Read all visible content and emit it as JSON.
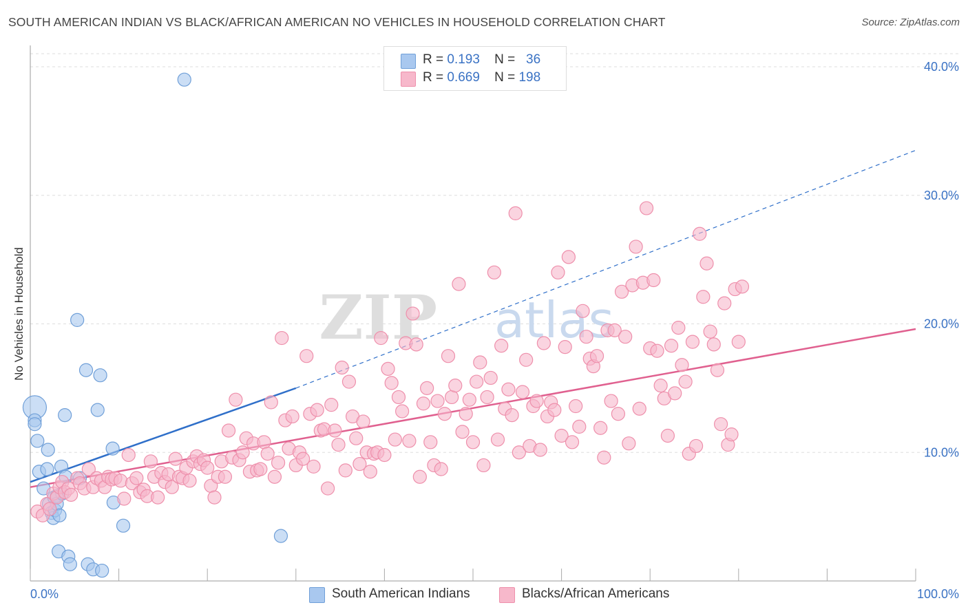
{
  "header": {
    "title": "SOUTH AMERICAN INDIAN VS BLACK/AFRICAN AMERICAN NO VEHICLES IN HOUSEHOLD CORRELATION CHART",
    "source": "Source: ZipAtlas.com"
  },
  "legend": {
    "rows": [
      {
        "r_label": "R =",
        "r_value": "0.193",
        "n_label": "N =",
        "n_value": "36"
      },
      {
        "r_label": "R =",
        "r_value": "0.669",
        "n_label": "N =",
        "n_value": "198"
      }
    ]
  },
  "watermark": {
    "zip": "ZIP",
    "atlas": "atlas"
  },
  "colors": {
    "blue_fill": "#a9c8ef",
    "blue_stroke": "#6f9fd8",
    "blue_line": "#2f6fc9",
    "pink_fill": "#f7b8cb",
    "pink_stroke": "#ee8fab",
    "pink_line": "#e0608f",
    "tick_label": "#3a72c4",
    "grid": "#dddddd"
  },
  "chart_data": {
    "type": "scatter",
    "title": "SOUTH AMERICAN INDIAN VS BLACK/AFRICAN AMERICAN NO VEHICLES IN HOUSEHOLD CORRELATION CHART",
    "xlabel": "",
    "ylabel": "No Vehicles in Household",
    "xlim": [
      0,
      100
    ],
    "ylim": [
      0,
      40
    ],
    "x_tick_labels": [
      "0.0%",
      "100.0%"
    ],
    "y_ticks": [
      10,
      20,
      30,
      40
    ],
    "y_tick_labels": [
      "10.0%",
      "20.0%",
      "30.0%",
      "40.0%"
    ],
    "grid": true,
    "legend_position": "top-center",
    "series": [
      {
        "name": "South American Indians",
        "color": "blue",
        "r": 0.193,
        "n": 36,
        "trend": {
          "x0": 0,
          "y0": 7.7,
          "x1": 30,
          "y1": 15.0,
          "dashed_to_x": 100,
          "dashed_to_y": 33.5
        },
        "points": [
          [
            0.5,
            13.5,
            "large"
          ],
          [
            0.5,
            12.5
          ],
          [
            0.5,
            12.2
          ],
          [
            0.8,
            10.9
          ],
          [
            1.0,
            8.5
          ],
          [
            1.5,
            7.2
          ],
          [
            1.9,
            8.7
          ],
          [
            2.0,
            10.2
          ],
          [
            2.1,
            6.0
          ],
          [
            2.4,
            5.3
          ],
          [
            2.6,
            4.9
          ],
          [
            2.7,
            6.5
          ],
          [
            2.8,
            5.5
          ],
          [
            3.0,
            6.6
          ],
          [
            3.0,
            6.0
          ],
          [
            3.2,
            2.3
          ],
          [
            3.3,
            5.1
          ],
          [
            3.5,
            8.9
          ],
          [
            3.6,
            6.8
          ],
          [
            3.9,
            12.9
          ],
          [
            4.0,
            8.1
          ],
          [
            4.3,
            1.9
          ],
          [
            4.5,
            1.3
          ],
          [
            5.3,
            20.3
          ],
          [
            5.6,
            8.0
          ],
          [
            6.5,
            1.3
          ],
          [
            7.1,
            0.9
          ],
          [
            7.6,
            13.3
          ],
          [
            7.9,
            16.0
          ],
          [
            8.1,
            0.8
          ],
          [
            6.3,
            16.4
          ],
          [
            9.4,
            6.1
          ],
          [
            10.5,
            4.3
          ],
          [
            9.3,
            10.3
          ],
          [
            17.4,
            39.0
          ],
          [
            28.3,
            3.5
          ]
        ]
      },
      {
        "name": "Blacks/African Americans",
        "color": "pink",
        "r": 0.669,
        "n": 198,
        "trend": {
          "x0": 0,
          "y0": 7.3,
          "x1": 100,
          "y1": 19.6
        },
        "points": [
          [
            0.8,
            5.4
          ],
          [
            1.4,
            5.1
          ],
          [
            1.9,
            6.0
          ],
          [
            2.2,
            5.6
          ],
          [
            2.6,
            6.8
          ],
          [
            3.0,
            6.5
          ],
          [
            3.3,
            7.3
          ],
          [
            3.6,
            7.7
          ],
          [
            3.9,
            6.9
          ],
          [
            4.3,
            7.2
          ],
          [
            4.6,
            6.7
          ],
          [
            5.3,
            8.0
          ],
          [
            5.6,
            7.6
          ],
          [
            6.1,
            7.2
          ],
          [
            6.6,
            8.7
          ],
          [
            7.1,
            7.3
          ],
          [
            7.5,
            8.0
          ],
          [
            8.0,
            7.8
          ],
          [
            8.4,
            7.3
          ],
          [
            8.8,
            8.1
          ],
          [
            9.2,
            7.9
          ],
          [
            9.6,
            8.0
          ],
          [
            10.2,
            7.8
          ],
          [
            10.6,
            6.4
          ],
          [
            11.1,
            9.8
          ],
          [
            11.5,
            7.6
          ],
          [
            12.0,
            8.0
          ],
          [
            12.4,
            6.9
          ],
          [
            12.8,
            7.1
          ],
          [
            13.2,
            6.6
          ],
          [
            13.6,
            9.3
          ],
          [
            14.0,
            8.1
          ],
          [
            14.4,
            6.5
          ],
          [
            14.8,
            8.4
          ],
          [
            15.2,
            7.7
          ],
          [
            15.6,
            8.3
          ],
          [
            16.0,
            7.3
          ],
          [
            16.4,
            9.5
          ],
          [
            16.8,
            8.1
          ],
          [
            17.2,
            8.0
          ],
          [
            17.6,
            8.8
          ],
          [
            18.0,
            7.8
          ],
          [
            18.4,
            9.3
          ],
          [
            18.8,
            9.7
          ],
          [
            19.2,
            9.1
          ],
          [
            19.6,
            9.4
          ],
          [
            20.0,
            8.8
          ],
          [
            20.4,
            7.4
          ],
          [
            20.8,
            6.5
          ],
          [
            21.2,
            8.1
          ],
          [
            21.6,
            9.3
          ],
          [
            22.0,
            8.1
          ],
          [
            22.4,
            11.7
          ],
          [
            22.8,
            9.6
          ],
          [
            23.2,
            14.1
          ],
          [
            23.6,
            9.4
          ],
          [
            24.0,
            10.0
          ],
          [
            24.4,
            11.1
          ],
          [
            24.8,
            8.5
          ],
          [
            25.2,
            10.7
          ],
          [
            25.6,
            8.6
          ],
          [
            26.0,
            8.7
          ],
          [
            26.4,
            10.8
          ],
          [
            26.8,
            9.9
          ],
          [
            27.2,
            13.9
          ],
          [
            27.6,
            8.1
          ],
          [
            28.0,
            9.2
          ],
          [
            28.4,
            18.9
          ],
          [
            28.8,
            12.5
          ],
          [
            29.2,
            10.3
          ],
          [
            29.6,
            12.8
          ],
          [
            30.0,
            9.0
          ],
          [
            30.4,
            10.0
          ],
          [
            30.8,
            9.5
          ],
          [
            31.2,
            17.5
          ],
          [
            31.6,
            13.0
          ],
          [
            32.0,
            8.9
          ],
          [
            32.4,
            13.3
          ],
          [
            32.8,
            11.7
          ],
          [
            33.2,
            11.8
          ],
          [
            33.6,
            7.2
          ],
          [
            34.0,
            13.7
          ],
          [
            34.4,
            11.7
          ],
          [
            34.8,
            10.6
          ],
          [
            35.2,
            16.6
          ],
          [
            35.6,
            8.6
          ],
          [
            36.0,
            15.5
          ],
          [
            36.4,
            12.8
          ],
          [
            36.8,
            11.1
          ],
          [
            37.2,
            9.1
          ],
          [
            37.6,
            12.4
          ],
          [
            38.0,
            10.0
          ],
          [
            38.4,
            8.5
          ],
          [
            38.8,
            9.9
          ],
          [
            39.2,
            10.0
          ],
          [
            39.6,
            18.9
          ],
          [
            40.0,
            9.8
          ],
          [
            40.4,
            16.5
          ],
          [
            40.8,
            15.4
          ],
          [
            41.2,
            11.0
          ],
          [
            41.6,
            14.3
          ],
          [
            42.0,
            13.2
          ],
          [
            42.4,
            18.5
          ],
          [
            42.8,
            10.9
          ],
          [
            43.2,
            20.8
          ],
          [
            43.6,
            18.4
          ],
          [
            44.0,
            8.1
          ],
          [
            44.4,
            13.8
          ],
          [
            44.8,
            15.0
          ],
          [
            45.2,
            10.8
          ],
          [
            45.6,
            9.0
          ],
          [
            46.0,
            14.0
          ],
          [
            46.4,
            8.7
          ],
          [
            46.8,
            13.0
          ],
          [
            47.2,
            17.5
          ],
          [
            47.6,
            14.3
          ],
          [
            48.0,
            15.2
          ],
          [
            48.4,
            23.1
          ],
          [
            48.8,
            11.6
          ],
          [
            49.2,
            13.0
          ],
          [
            49.6,
            14.1
          ],
          [
            50.0,
            10.8
          ],
          [
            50.4,
            15.5
          ],
          [
            50.8,
            17.0
          ],
          [
            51.2,
            9.0
          ],
          [
            51.6,
            14.3
          ],
          [
            52.0,
            15.8
          ],
          [
            52.4,
            24.0
          ],
          [
            52.8,
            11.0
          ],
          [
            53.2,
            18.3
          ],
          [
            53.6,
            13.4
          ],
          [
            54.0,
            14.9
          ],
          [
            54.4,
            12.9
          ],
          [
            54.8,
            28.6
          ],
          [
            55.2,
            10.0
          ],
          [
            55.6,
            14.7
          ],
          [
            56.0,
            17.2
          ],
          [
            56.4,
            10.5
          ],
          [
            56.8,
            13.6
          ],
          [
            57.2,
            14.0
          ],
          [
            57.6,
            10.2
          ],
          [
            58.0,
            18.5
          ],
          [
            58.4,
            12.8
          ],
          [
            58.8,
            13.9
          ],
          [
            59.2,
            13.3
          ],
          [
            59.6,
            24.0
          ],
          [
            60.0,
            11.3
          ],
          [
            60.4,
            18.2
          ],
          [
            60.8,
            25.2
          ],
          [
            61.2,
            10.8
          ],
          [
            61.6,
            13.6
          ],
          [
            62.0,
            12.0
          ],
          [
            62.4,
            21.0
          ],
          [
            62.8,
            19.0
          ],
          [
            63.2,
            17.3
          ],
          [
            63.6,
            16.7
          ],
          [
            64.0,
            17.5
          ],
          [
            64.4,
            11.9
          ],
          [
            64.8,
            9.6
          ],
          [
            65.2,
            19.5
          ],
          [
            65.6,
            14.0
          ],
          [
            66.0,
            19.5
          ],
          [
            66.4,
            13.0
          ],
          [
            66.8,
            22.5
          ],
          [
            67.2,
            19.0
          ],
          [
            67.6,
            10.7
          ],
          [
            68.0,
            23.0
          ],
          [
            68.4,
            26.0
          ],
          [
            68.8,
            13.4
          ],
          [
            69.2,
            23.2
          ],
          [
            69.6,
            29.0
          ],
          [
            70.0,
            18.1
          ],
          [
            70.4,
            23.4
          ],
          [
            70.8,
            17.9
          ],
          [
            71.2,
            15.2
          ],
          [
            71.6,
            14.2
          ],
          [
            72.0,
            11.3
          ],
          [
            72.4,
            18.3
          ],
          [
            72.8,
            14.6
          ],
          [
            73.2,
            19.7
          ],
          [
            73.6,
            16.8
          ],
          [
            74.0,
            15.5
          ],
          [
            74.4,
            9.9
          ],
          [
            74.8,
            18.6
          ],
          [
            75.2,
            10.5
          ],
          [
            75.6,
            27.0
          ],
          [
            76.0,
            22.1
          ],
          [
            76.4,
            24.7
          ],
          [
            76.8,
            19.4
          ],
          [
            77.2,
            18.4
          ],
          [
            77.6,
            16.4
          ],
          [
            78.0,
            12.2
          ],
          [
            78.4,
            21.6
          ],
          [
            78.8,
            10.6
          ],
          [
            79.2,
            11.4
          ],
          [
            79.6,
            22.7
          ],
          [
            80.0,
            18.6
          ],
          [
            80.4,
            22.9
          ]
        ]
      }
    ]
  },
  "bottom_legend": [
    {
      "label": "South American Indians"
    },
    {
      "label": "Blacks/African Americans"
    }
  ]
}
